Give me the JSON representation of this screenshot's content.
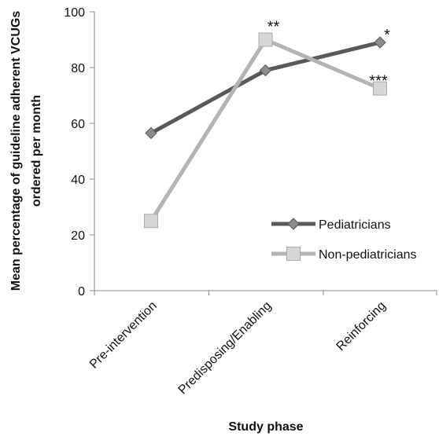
{
  "chart_data": {
    "type": "line",
    "categories": [
      "Pre-intervention",
      "Predisposing/Enabling",
      "Reinforcing"
    ],
    "series": [
      {
        "name": "Pediatricians",
        "values": [
          56.5,
          79,
          89
        ],
        "color": "#595959",
        "marker": "diamond"
      },
      {
        "name": "Non-pediatricians",
        "values": [
          25,
          90,
          72.5
        ],
        "color": "#b3b3b3",
        "marker": "square"
      }
    ],
    "annotations": [
      {
        "text": "**",
        "category": 1,
        "value": 90
      },
      {
        "text": "*",
        "category": 2,
        "value": 89
      },
      {
        "text": "***",
        "category": 2,
        "value": 72.5
      }
    ],
    "xlabel": "Study phase",
    "ylabel_lines": [
      "Mean percentage of guideline adherent VCUGs",
      "ordered per month"
    ],
    "ylim": [
      0,
      100
    ],
    "yticks": [
      0,
      20,
      40,
      60,
      80,
      100
    ],
    "grid": false,
    "legend_position": "right"
  }
}
